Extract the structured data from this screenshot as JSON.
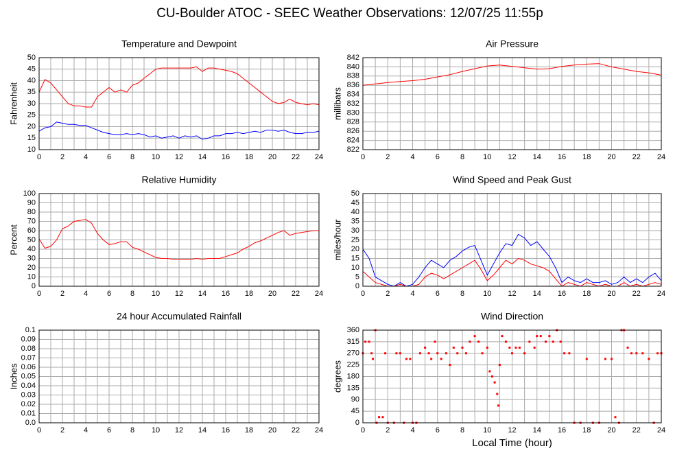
{
  "title": "CU-Boulder ATOC - SEEC Weather Observations: 12/07/25 11:55p",
  "chart_data": [
    {
      "type": "line",
      "title": "Temperature and Dewpoint",
      "y_label": "Fahrenheit",
      "x": [
        0,
        0.5,
        1,
        1.5,
        2,
        2.5,
        3,
        3.5,
        4,
        4.5,
        5,
        5.5,
        6,
        6.5,
        7,
        7.5,
        8,
        8.5,
        9,
        9.5,
        10,
        10.5,
        11,
        11.5,
        12,
        12.5,
        13,
        13.5,
        14,
        14.5,
        15,
        15.5,
        16,
        16.5,
        17,
        17.5,
        18,
        18.5,
        19,
        19.5,
        20,
        20.5,
        21,
        21.5,
        22,
        22.5,
        23,
        23.5,
        24
      ],
      "series": [
        {
          "color": "#ff0000",
          "values": [
            35,
            40.5,
            39,
            36,
            33,
            30,
            29,
            29,
            28.5,
            28.5,
            33,
            35,
            37,
            35,
            36,
            35,
            38,
            39,
            41,
            43,
            45,
            45.5,
            45.5,
            45.5,
            45.5,
            45.5,
            45.5,
            46,
            44,
            45.5,
            45.5,
            45,
            44.5,
            44,
            43,
            41,
            39,
            37,
            35,
            33,
            31,
            30,
            30.5,
            32,
            30.5,
            30,
            29.5,
            30,
            29.5
          ]
        },
        {
          "color": "#0000ff",
          "values": [
            18,
            19.5,
            20,
            22,
            21.5,
            21,
            21,
            20.5,
            20.5,
            19.5,
            18.5,
            17.5,
            17,
            16.5,
            16.5,
            17,
            16.5,
            17,
            16.5,
            15.5,
            16,
            15,
            15.5,
            16,
            15,
            16,
            15.5,
            16,
            14.5,
            15,
            16,
            16,
            17,
            17,
            17.5,
            17,
            17.5,
            18,
            17.5,
            18.5,
            18.5,
            18,
            18.5,
            17.5,
            17,
            17,
            17.5,
            17.5,
            18
          ]
        }
      ],
      "xlim": [
        0,
        24
      ],
      "xticks": [
        0,
        2,
        4,
        6,
        8,
        10,
        12,
        14,
        16,
        18,
        20,
        22,
        24
      ],
      "ylim": [
        10,
        50
      ],
      "yticks": [
        10,
        15,
        20,
        25,
        30,
        35,
        40,
        45,
        50
      ],
      "grid": true
    },
    {
      "type": "line",
      "title": "Air Pressure",
      "y_label": "millibars",
      "x": [
        0,
        1,
        2,
        3,
        4,
        5,
        6,
        7,
        8,
        9,
        10,
        11,
        12,
        13,
        14,
        15,
        16,
        17,
        18,
        19,
        20,
        21,
        22,
        23,
        24
      ],
      "series": [
        {
          "color": "#ff0000",
          "values": [
            836,
            836.3,
            836.6,
            836.8,
            837,
            837.3,
            837.8,
            838.3,
            839,
            839.6,
            840.2,
            840.4,
            840.1,
            839.8,
            839.5,
            839.6,
            840.1,
            840.4,
            840.6,
            840.7,
            840,
            839.5,
            839,
            838.7,
            838.2
          ]
        }
      ],
      "xlim": [
        0,
        24
      ],
      "xticks": [
        0,
        2,
        4,
        6,
        8,
        10,
        12,
        14,
        16,
        18,
        20,
        22,
        24
      ],
      "ylim": [
        822,
        842
      ],
      "yticks": [
        822,
        824,
        826,
        828,
        830,
        832,
        834,
        836,
        838,
        840,
        842
      ],
      "grid": true
    },
    {
      "type": "line",
      "title": "Relative Humidity",
      "y_label": "Percent",
      "x": [
        0,
        0.5,
        1,
        1.5,
        2,
        2.5,
        3,
        3.5,
        4,
        4.5,
        5,
        5.5,
        6,
        6.5,
        7,
        7.5,
        8,
        8.5,
        9,
        9.5,
        10,
        10.5,
        11,
        11.5,
        12,
        12.5,
        13,
        13.5,
        14,
        14.5,
        15,
        15.5,
        16,
        16.5,
        17,
        17.5,
        18,
        18.5,
        19,
        19.5,
        20,
        20.5,
        21,
        21.5,
        22,
        22.5,
        23,
        23.5,
        24
      ],
      "series": [
        {
          "color": "#ff0000",
          "values": [
            51,
            41,
            43,
            50,
            62,
            65,
            70,
            71,
            72,
            68,
            57,
            50,
            45,
            46,
            48,
            48,
            42,
            40,
            37,
            34,
            31,
            30,
            30,
            29,
            29,
            29,
            29,
            30,
            29,
            30,
            30,
            30,
            32,
            34,
            36,
            40,
            43,
            47,
            49,
            52,
            55,
            58,
            60,
            55,
            57,
            58,
            59,
            60,
            60
          ]
        }
      ],
      "xlim": [
        0,
        24
      ],
      "xticks": [
        0,
        2,
        4,
        6,
        8,
        10,
        12,
        14,
        16,
        18,
        20,
        22,
        24
      ],
      "ylim": [
        0,
        100
      ],
      "yticks": [
        0,
        10,
        20,
        30,
        40,
        50,
        60,
        70,
        80,
        90,
        100
      ],
      "grid": true
    },
    {
      "type": "line",
      "title": "Wind Speed and Peak Gust",
      "y_label": "miles/hour",
      "x": [
        0,
        0.5,
        1,
        1.5,
        2,
        2.5,
        3,
        3.5,
        4,
        4.5,
        5,
        5.5,
        6,
        6.5,
        7,
        7.5,
        8,
        8.5,
        9,
        9.5,
        10,
        10.5,
        11,
        11.5,
        12,
        12.5,
        13,
        13.5,
        14,
        14.5,
        15,
        15.5,
        16,
        16.5,
        17,
        17.5,
        18,
        18.5,
        19,
        19.5,
        20,
        20.5,
        21,
        21.5,
        22,
        22.5,
        23,
        23.5,
        24
      ],
      "series": [
        {
          "color": "#0000ff",
          "values": [
            20,
            15,
            5,
            3,
            1,
            0,
            2,
            0,
            1,
            5,
            10,
            14,
            12,
            10,
            14,
            16,
            19,
            21,
            22,
            14,
            6,
            12,
            18,
            23,
            22,
            28,
            26,
            22,
            24,
            20,
            16,
            10,
            2,
            5,
            3,
            2,
            4,
            2,
            2,
            3,
            1,
            2,
            5,
            2,
            4,
            2,
            5,
            7,
            3
          ]
        },
        {
          "color": "#ff0000",
          "values": [
            8,
            5,
            2,
            1,
            0,
            0,
            1,
            0,
            0,
            1,
            5,
            7,
            6,
            4,
            6,
            8,
            10,
            12,
            14,
            9,
            3,
            6,
            10,
            14,
            12,
            15,
            14,
            12,
            11,
            10,
            8,
            4,
            0,
            2,
            1,
            0,
            2,
            1,
            0,
            1,
            0,
            0,
            2,
            0,
            1,
            0,
            1,
            2,
            1
          ]
        }
      ],
      "xlim": [
        0,
        24
      ],
      "xticks": [
        0,
        2,
        4,
        6,
        8,
        10,
        12,
        14,
        16,
        18,
        20,
        22,
        24
      ],
      "ylim": [
        0,
        50
      ],
      "yticks": [
        0,
        5,
        10,
        15,
        20,
        25,
        30,
        35,
        40,
        45,
        50
      ],
      "grid": true
    },
    {
      "type": "line",
      "title": "24 hour Accumulated Rainfall",
      "y_label": "Inches",
      "x": [
        0,
        24
      ],
      "series": [
        {
          "color": "#ff0000",
          "values": [
            0,
            0
          ]
        }
      ],
      "xlim": [
        0,
        24
      ],
      "xticks": [
        0,
        2,
        4,
        6,
        8,
        10,
        12,
        14,
        16,
        18,
        20,
        22,
        24
      ],
      "ylim": [
        0,
        0.1
      ],
      "yticks": [
        {
          "value": 0,
          "label": "0.0"
        },
        0.01,
        0.02,
        0.03,
        0.04,
        0.05,
        0.06,
        0.07,
        0.08,
        0.09,
        0.1
      ],
      "grid": true
    },
    {
      "type": "scatter",
      "title": "Wind Direction",
      "y_label": "degrees",
      "x_label": "Local Time (hour)",
      "color": "#ff0000",
      "x": [
        0,
        0.2,
        0.5,
        0.7,
        0.8,
        1,
        1.1,
        1.3,
        1.6,
        1.8,
        2,
        2.5,
        2.7,
        3,
        3.3,
        3.5,
        3.8,
        4,
        4.3,
        4.6,
        5,
        5.3,
        5.5,
        5.8,
        6,
        6.3,
        6.7,
        7,
        7.3,
        7.6,
        8,
        8.3,
        8.6,
        9,
        9.3,
        9.6,
        10,
        10.2,
        10.4,
        10.6,
        10.8,
        10.9,
        11,
        11.2,
        11.5,
        11.8,
        12,
        12.3,
        12.6,
        13,
        13.4,
        13.8,
        14,
        14.3,
        14.7,
        15,
        15.3,
        15.6,
        15.9,
        16.2,
        16.6,
        17,
        17.5,
        18,
        18.5,
        19,
        19.5,
        20,
        20.3,
        20.6,
        20.8,
        21,
        21.3,
        21.6,
        22,
        22.5,
        23,
        23.4,
        23.7,
        24
      ],
      "values": [
        270,
        315,
        315,
        270,
        248,
        360,
        0,
        22,
        22,
        270,
        0,
        0,
        270,
        270,
        0,
        248,
        248,
        0,
        0,
        270,
        292,
        270,
        248,
        315,
        270,
        248,
        270,
        225,
        292,
        270,
        292,
        270,
        315,
        337,
        315,
        270,
        292,
        200,
        180,
        157,
        112,
        67,
        225,
        337,
        315,
        292,
        270,
        292,
        292,
        270,
        315,
        292,
        337,
        337,
        315,
        337,
        315,
        360,
        315,
        270,
        270,
        0,
        0,
        248,
        0,
        0,
        248,
        248,
        22,
        0,
        360,
        360,
        292,
        270,
        270,
        270,
        248,
        0,
        270,
        270
      ],
      "xlim": [
        0,
        24
      ],
      "xticks": [
        0,
        2,
        4,
        6,
        8,
        10,
        12,
        14,
        16,
        18,
        20,
        22,
        24
      ],
      "ylim": [
        0,
        360
      ],
      "yticks": [
        0,
        45,
        90,
        135,
        180,
        225,
        270,
        315,
        360
      ],
      "grid": true
    }
  ]
}
